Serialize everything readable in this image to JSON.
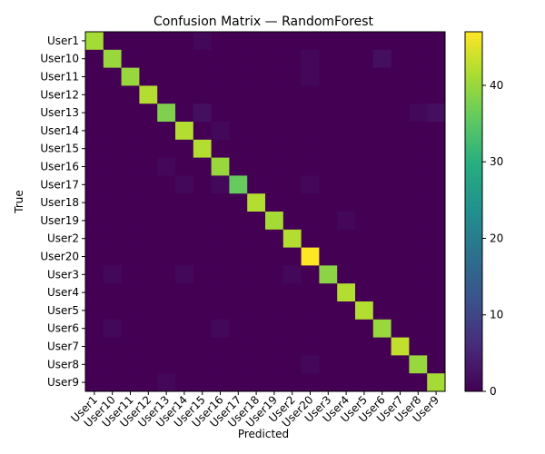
{
  "chart_data": {
    "type": "heatmap",
    "title": "Confusion Matrix — RandomForest",
    "xlabel": "Predicted",
    "ylabel": "True",
    "labels": [
      "User1",
      "User10",
      "User11",
      "User12",
      "User13",
      "User14",
      "User15",
      "User16",
      "User17",
      "User18",
      "User19",
      "User2",
      "User20",
      "User3",
      "User4",
      "User5",
      "User6",
      "User7",
      "User8",
      "User9"
    ],
    "matrix": [
      [
        41,
        0,
        0,
        0,
        0,
        0,
        1,
        0,
        0,
        0,
        0,
        0,
        0,
        0,
        0,
        0,
        0,
        0,
        0,
        0
      ],
      [
        0,
        40,
        0,
        0,
        0,
        0,
        0,
        0,
        0,
        0,
        0,
        0,
        1,
        0,
        0,
        0,
        2,
        0,
        0,
        0
      ],
      [
        0,
        0,
        40,
        0,
        0,
        0,
        0,
        0,
        0,
        0,
        0,
        0,
        1,
        0,
        0,
        0,
        0,
        0,
        0,
        0
      ],
      [
        0,
        0,
        0,
        42,
        0,
        0,
        0,
        0,
        0,
        0,
        0,
        0,
        0,
        0,
        0,
        0,
        0,
        0,
        0,
        0
      ],
      [
        0,
        0,
        0,
        0,
        38,
        0,
        2,
        0,
        0,
        0,
        0,
        0,
        0,
        0,
        0,
        0,
        0,
        0,
        1,
        2
      ],
      [
        0,
        0,
        0,
        0,
        0,
        42,
        0,
        1,
        0,
        0,
        0,
        0,
        0,
        0,
        0,
        0,
        0,
        0,
        0,
        0
      ],
      [
        0,
        0,
        0,
        0,
        0,
        0,
        42,
        0,
        0,
        0,
        0,
        0,
        0,
        0,
        0,
        0,
        0,
        0,
        0,
        0
      ],
      [
        0,
        0,
        0,
        0,
        1,
        0,
        0,
        40,
        0,
        0,
        0,
        0,
        0,
        0,
        0,
        0,
        0,
        0,
        0,
        0
      ],
      [
        0,
        0,
        0,
        0,
        0,
        1,
        0,
        1,
        36,
        0,
        0,
        0,
        1,
        0,
        0,
        0,
        0,
        0,
        0,
        0
      ],
      [
        0,
        0,
        0,
        0,
        0,
        0,
        0,
        0,
        0,
        42,
        0,
        0,
        0,
        0,
        0,
        0,
        0,
        0,
        0,
        0
      ],
      [
        0,
        0,
        0,
        0,
        0,
        0,
        0,
        0,
        0,
        0,
        41,
        0,
        0,
        0,
        1,
        0,
        0,
        0,
        0,
        0
      ],
      [
        0,
        0,
        0,
        0,
        0,
        0,
        0,
        0,
        0,
        0,
        0,
        42,
        0,
        0,
        0,
        0,
        0,
        0,
        0,
        0
      ],
      [
        0,
        0,
        0,
        0,
        0,
        0,
        0,
        0,
        0,
        0,
        0,
        0,
        47,
        0,
        0,
        0,
        0,
        0,
        0,
        0
      ],
      [
        0,
        1,
        0,
        0,
        0,
        1,
        0,
        0,
        0,
        0,
        0,
        1,
        0,
        39,
        0,
        0,
        0,
        0,
        0,
        0
      ],
      [
        0,
        0,
        0,
        0,
        0,
        0,
        0,
        0,
        0,
        0,
        0,
        0,
        0,
        0,
        42,
        0,
        0,
        0,
        0,
        0
      ],
      [
        0,
        0,
        0,
        0,
        0,
        0,
        0,
        0,
        0,
        0,
        0,
        0,
        0,
        0,
        0,
        42,
        0,
        0,
        0,
        0
      ],
      [
        0,
        1,
        0,
        0,
        0,
        0,
        0,
        1,
        0,
        0,
        0,
        0,
        0,
        0,
        0,
        0,
        40,
        0,
        0,
        0
      ],
      [
        0,
        0,
        0,
        0,
        0,
        0,
        0,
        0,
        0,
        0,
        0,
        0,
        0,
        0,
        0,
        0,
        0,
        43,
        0,
        0
      ],
      [
        0,
        0,
        0,
        0,
        0,
        0,
        0,
        0,
        0,
        0,
        0,
        0,
        1,
        0,
        0,
        0,
        0,
        0,
        40,
        0
      ],
      [
        0,
        0,
        0,
        0,
        1,
        0,
        0,
        0,
        0,
        0,
        0,
        0,
        0,
        0,
        0,
        0,
        0,
        0,
        0,
        41
      ]
    ],
    "vmin": 0,
    "vmax": 47,
    "colorbar_ticks": [
      0,
      10,
      20,
      30,
      40
    ],
    "colormap": "viridis",
    "grid": false
  }
}
